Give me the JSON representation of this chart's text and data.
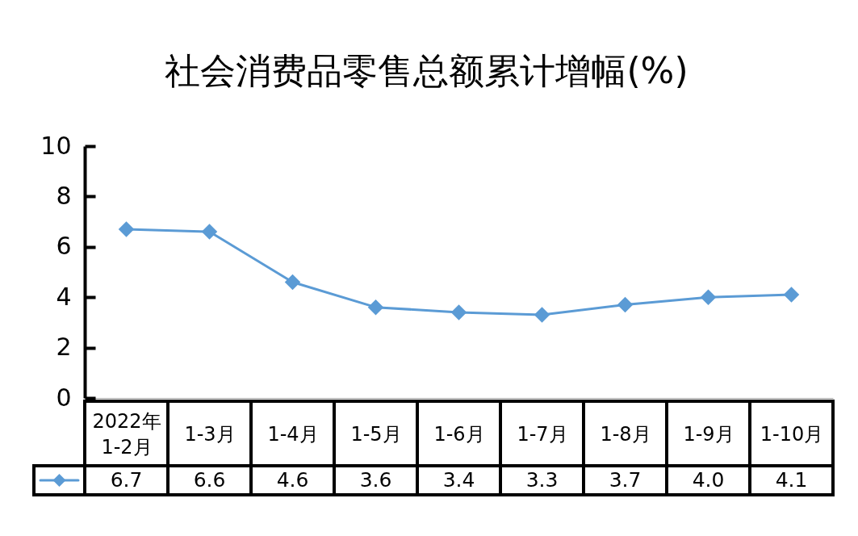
{
  "chart_data": {
    "type": "line",
    "title": "社会消费品零售总额累计增幅(%)",
    "categories": [
      "2022年\n1-2月",
      "1-3月",
      "1-4月",
      "1-5月",
      "1-6月",
      "1-7月",
      "1-8月",
      "1-9月",
      "1-10月"
    ],
    "series": [
      {
        "color": "#5b9bd5",
        "values": [
          6.7,
          6.6,
          4.6,
          3.6,
          3.4,
          3.3,
          3.7,
          4.0,
          4.1
        ],
        "value_labels": [
          "6.7",
          "6.6",
          "4.6",
          "3.6",
          "3.4",
          "3.3",
          "3.7",
          "4.0",
          "4.1"
        ]
      }
    ],
    "ylim": [
      0,
      10
    ],
    "yticks": [
      0,
      2,
      4,
      6,
      8,
      10
    ],
    "marker": "diamond",
    "line_style": "solid"
  }
}
